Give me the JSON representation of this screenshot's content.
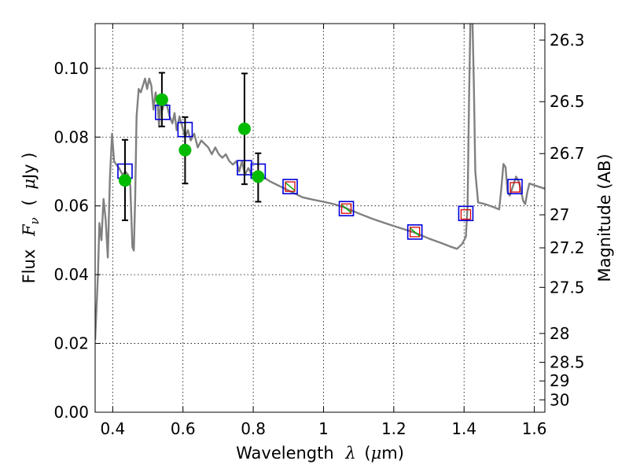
{
  "chart_data": {
    "type": "line",
    "title": "",
    "xlabel": {
      "text": "Wavelength",
      "symbol": "λ",
      "unit_prefix": "(",
      "unit_mu": "μ",
      "unit_rest": "m)"
    },
    "ylabel": {
      "text": "Flux",
      "symbol": "F",
      "subscript": "ν",
      "unit_prefix": "(",
      "unit_mu": "μ",
      "unit_rest": "Jy )"
    },
    "y2label": "Magnitude (AB)",
    "xlim": [
      0.35,
      1.63
    ],
    "ylim": [
      0.0,
      0.113
    ],
    "grid": true,
    "x_ticks": [
      {
        "value": 0.4,
        "label": "0.4"
      },
      {
        "value": 0.6,
        "label": "0.6"
      },
      {
        "value": 0.8,
        "label": "0.8"
      },
      {
        "value": 1.0,
        "label": "1"
      },
      {
        "value": 1.2,
        "label": "1.2"
      },
      {
        "value": 1.4,
        "label": "1.4"
      },
      {
        "value": 1.6,
        "label": "1.6"
      }
    ],
    "y_ticks": [
      {
        "value": 0.0,
        "label": "0.00"
      },
      {
        "value": 0.02,
        "label": "0.02"
      },
      {
        "value": 0.04,
        "label": "0.04"
      },
      {
        "value": 0.06,
        "label": "0.06"
      },
      {
        "value": 0.08,
        "label": "0.08"
      },
      {
        "value": 0.1,
        "label": "0.10"
      }
    ],
    "y2_ticks": [
      {
        "flux": 0.1082,
        "label": "26.3"
      },
      {
        "flux": 0.0903,
        "label": "26.5"
      },
      {
        "flux": 0.0752,
        "label": "26.7"
      },
      {
        "flux": 0.0574,
        "label": "27"
      },
      {
        "flux": 0.0478,
        "label": "27.2"
      },
      {
        "flux": 0.0363,
        "label": "27.5"
      },
      {
        "flux": 0.0229,
        "label": "28"
      },
      {
        "flux": 0.0145,
        "label": "28.5"
      },
      {
        "flux": 0.0091,
        "label": "29"
      },
      {
        "flux": 0.0036,
        "label": "30"
      }
    ],
    "series": [
      {
        "name": "model-spectrum",
        "color": "#808080",
        "points": [
          [
            0.35,
            0.021
          ],
          [
            0.358,
            0.04
          ],
          [
            0.362,
            0.055
          ],
          [
            0.368,
            0.05
          ],
          [
            0.374,
            0.062
          ],
          [
            0.38,
            0.056
          ],
          [
            0.386,
            0.045
          ],
          [
            0.392,
            0.068
          ],
          [
            0.398,
            0.081
          ],
          [
            0.404,
            0.073
          ],
          [
            0.41,
            0.072
          ],
          [
            0.418,
            0.071
          ],
          [
            0.428,
            0.069
          ],
          [
            0.436,
            0.07
          ],
          [
            0.444,
            0.069
          ],
          [
            0.45,
            0.066
          ],
          [
            0.456,
            0.048
          ],
          [
            0.46,
            0.047
          ],
          [
            0.464,
            0.062
          ],
          [
            0.468,
            0.086
          ],
          [
            0.474,
            0.094
          ],
          [
            0.48,
            0.093
          ],
          [
            0.486,
            0.095
          ],
          [
            0.492,
            0.097
          ],
          [
            0.498,
            0.094
          ],
          [
            0.504,
            0.097
          ],
          [
            0.51,
            0.095
          ],
          [
            0.516,
            0.088
          ],
          [
            0.522,
            0.093
          ],
          [
            0.528,
            0.09
          ],
          [
            0.532,
            0.083
          ],
          [
            0.536,
            0.09
          ],
          [
            0.542,
            0.088
          ],
          [
            0.548,
            0.091
          ],
          [
            0.555,
            0.089
          ],
          [
            0.562,
            0.086
          ],
          [
            0.57,
            0.084
          ],
          [
            0.576,
            0.087
          ],
          [
            0.582,
            0.082
          ],
          [
            0.59,
            0.086
          ],
          [
            0.598,
            0.083
          ],
          [
            0.606,
            0.08
          ],
          [
            0.614,
            0.082
          ],
          [
            0.622,
            0.079
          ],
          [
            0.632,
            0.081
          ],
          [
            0.642,
            0.077
          ],
          [
            0.652,
            0.079
          ],
          [
            0.662,
            0.078
          ],
          [
            0.672,
            0.077
          ],
          [
            0.682,
            0.075
          ],
          [
            0.692,
            0.077
          ],
          [
            0.702,
            0.075
          ],
          [
            0.712,
            0.074
          ],
          [
            0.722,
            0.075
          ],
          [
            0.732,
            0.073
          ],
          [
            0.742,
            0.072
          ],
          [
            0.752,
            0.073
          ],
          [
            0.76,
            0.07
          ],
          [
            0.768,
            0.073
          ],
          [
            0.776,
            0.069
          ],
          [
            0.786,
            0.071
          ],
          [
            0.796,
            0.069
          ],
          [
            0.808,
            0.07
          ],
          [
            0.82,
            0.068
          ],
          [
            0.834,
            0.068
          ],
          [
            0.85,
            0.067
          ],
          [
            0.87,
            0.066
          ],
          [
            0.89,
            0.065
          ],
          [
            0.91,
            0.064
          ],
          [
            0.94,
            0.0625
          ],
          [
            0.97,
            0.0618
          ],
          [
            1.0,
            0.0612
          ],
          [
            1.03,
            0.0605
          ],
          [
            1.06,
            0.0595
          ],
          [
            1.1,
            0.0578
          ],
          [
            1.14,
            0.0562
          ],
          [
            1.18,
            0.0548
          ],
          [
            1.22,
            0.0535
          ],
          [
            1.26,
            0.0522
          ],
          [
            1.3,
            0.0505
          ],
          [
            1.34,
            0.049
          ],
          [
            1.36,
            0.0482
          ],
          [
            1.38,
            0.0475
          ],
          [
            1.395,
            0.049
          ],
          [
            1.405,
            0.051
          ],
          [
            1.41,
            0.06
          ],
          [
            1.414,
            0.09
          ],
          [
            1.418,
            0.114
          ],
          [
            1.424,
            0.114
          ],
          [
            1.428,
            0.095
          ],
          [
            1.432,
            0.07
          ],
          [
            1.44,
            0.061
          ],
          [
            1.46,
            0.0605
          ],
          [
            1.48,
            0.0598
          ],
          [
            1.5,
            0.059
          ],
          [
            1.506,
            0.065
          ],
          [
            1.512,
            0.0722
          ],
          [
            1.518,
            0.0712
          ],
          [
            1.524,
            0.064
          ],
          [
            1.53,
            0.063
          ],
          [
            1.54,
            0.066
          ],
          [
            1.548,
            0.0685
          ],
          [
            1.556,
            0.067
          ],
          [
            1.562,
            0.0645
          ],
          [
            1.568,
            0.0615
          ],
          [
            1.574,
            0.0605
          ],
          [
            1.58,
            0.064
          ],
          [
            1.586,
            0.0665
          ],
          [
            1.6,
            0.066
          ],
          [
            1.615,
            0.0655
          ],
          [
            1.63,
            0.065
          ]
        ]
      }
    ],
    "observed": {
      "color": "#00bb00",
      "points": [
        {
          "x": 0.435,
          "y": 0.0674,
          "ylo": 0.0558,
          "yhi": 0.0792
        },
        {
          "x": 0.54,
          "y": 0.0909,
          "ylo": 0.0831,
          "yhi": 0.0987
        },
        {
          "x": 0.606,
          "y": 0.0762,
          "ylo": 0.0665,
          "yhi": 0.0858
        },
        {
          "x": 0.775,
          "y": 0.0824,
          "ylo": 0.0663,
          "yhi": 0.0985
        },
        {
          "x": 0.814,
          "y": 0.0685,
          "ylo": 0.0612,
          "yhi": 0.0753
        }
      ]
    },
    "model_bands": {
      "color": "#0000dd",
      "points": [
        {
          "x": 0.435,
          "y": 0.0701
        },
        {
          "x": 0.542,
          "y": 0.0872
        },
        {
          "x": 0.606,
          "y": 0.0822
        },
        {
          "x": 0.775,
          "y": 0.0711
        },
        {
          "x": 0.814,
          "y": 0.0701
        },
        {
          "x": 0.905,
          "y": 0.0656
        },
        {
          "x": 1.065,
          "y": 0.0592
        },
        {
          "x": 1.26,
          "y": 0.0524
        },
        {
          "x": 1.405,
          "y": 0.0578
        },
        {
          "x": 1.545,
          "y": 0.0656
        }
      ]
    },
    "upper_limits": {
      "color": "#dd0000",
      "points": [
        {
          "x": 0.905,
          "y": 0.0656
        },
        {
          "x": 1.065,
          "y": 0.0592
        },
        {
          "x": 1.26,
          "y": 0.0524
        },
        {
          "x": 1.405,
          "y": 0.0575
        },
        {
          "x": 1.545,
          "y": 0.0654
        }
      ]
    },
    "faint_limit_marks": {
      "color": "#00aa00",
      "points": [
        {
          "x": 0.905,
          "y": 0.0656
        },
        {
          "x": 1.065,
          "y": 0.0592
        },
        {
          "x": 1.26,
          "y": 0.0524
        }
      ]
    }
  }
}
